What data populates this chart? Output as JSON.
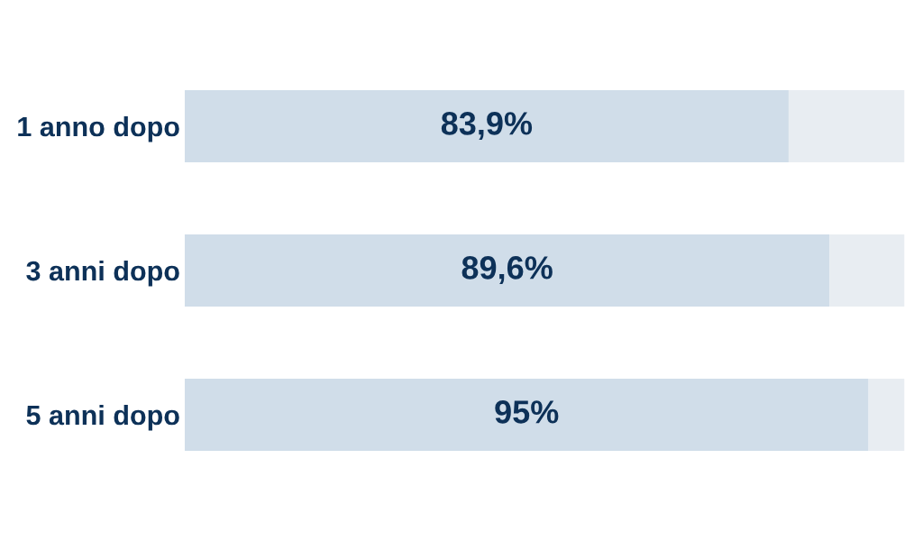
{
  "chart_data": {
    "type": "bar",
    "orientation": "horizontal",
    "stacked": true,
    "categories": [
      "1 anno dopo",
      "3 anni dopo",
      "5 anni dopo"
    ],
    "series": [
      {
        "color": "#d0dde9",
        "values": [
          83.9,
          89.6,
          95
        ],
        "value_labels": [
          "83,9%",
          "89,6%",
          "95%"
        ]
      },
      {
        "color": "#e8edf2",
        "values": [
          16.1,
          10.4,
          5
        ]
      }
    ],
    "tick_labels": "y",
    "grid": false
  }
}
